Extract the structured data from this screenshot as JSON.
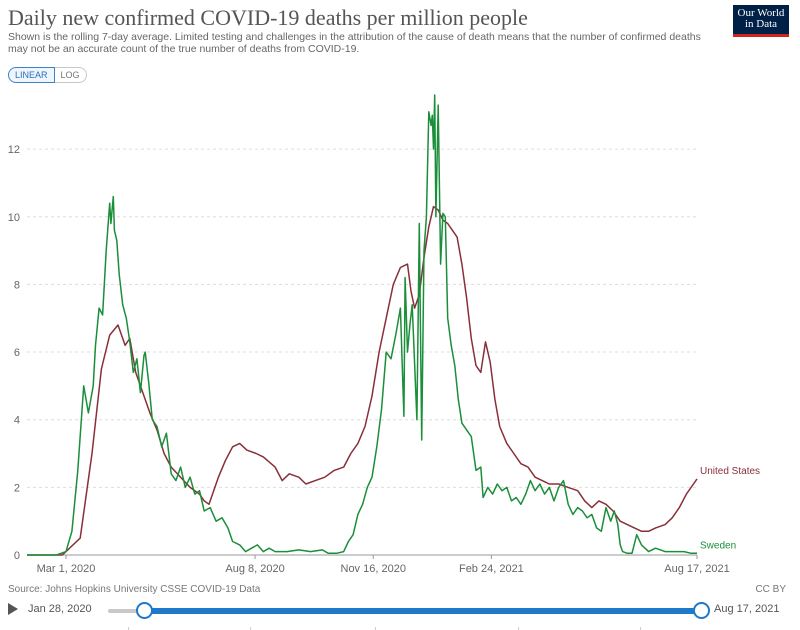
{
  "header": {
    "title": "Daily new confirmed COVID-19 deaths per million people",
    "subtitle": "Shown is the rolling 7-day average. Limited testing and challenges in the attribution of the cause of death means that the number of confirmed deaths may not be an accurate count of the true number of deaths from COVID-19.",
    "logo_line1": "Our World",
    "logo_line2": "in Data"
  },
  "controls": {
    "linear_label": "LINEAR",
    "log_label": "LOG"
  },
  "footer": {
    "source": "Source: Johns Hopkins University CSSE COVID-19 Data",
    "license": "CC BY"
  },
  "timeline": {
    "start": "Jan 28, 2020",
    "end": "Aug 17, 2021"
  },
  "colors": {
    "united_states": "#883039",
    "sweden": "#1b8e3a",
    "grid": "#dddddd",
    "text": "#666666"
  },
  "chart_data": {
    "type": "line",
    "title": "Daily new confirmed COVID-19 deaths per million people",
    "xlabel": "",
    "ylabel": "",
    "x_unit": "days since Jan 28, 2020",
    "xlim": [
      0,
      567
    ],
    "ylim": [
      0,
      13.6
    ],
    "y_ticks": [
      0,
      2,
      4,
      6,
      8,
      10,
      12
    ],
    "x_ticks": [
      {
        "x": 33,
        "label": "Mar 1, 2020"
      },
      {
        "x": 193,
        "label": "Aug 8, 2020"
      },
      {
        "x": 293,
        "label": "Nov 16, 2020"
      },
      {
        "x": 393,
        "label": "Feb 24, 2021"
      },
      {
        "x": 567,
        "label": "Aug 17, 2021"
      }
    ],
    "series": [
      {
        "name": "United States",
        "color": "#883039",
        "points": [
          [
            0,
            0
          ],
          [
            30,
            0
          ],
          [
            45,
            0.5
          ],
          [
            55,
            3
          ],
          [
            63,
            5.5
          ],
          [
            70,
            6.5
          ],
          [
            77,
            6.8
          ],
          [
            83,
            6.2
          ],
          [
            87,
            6.4
          ],
          [
            92,
            5.4
          ],
          [
            98,
            4.8
          ],
          [
            104,
            4.2
          ],
          [
            110,
            3.7
          ],
          [
            116,
            3.0
          ],
          [
            122,
            2.6
          ],
          [
            130,
            2.3
          ],
          [
            138,
            2.0
          ],
          [
            146,
            1.8
          ],
          [
            150,
            1.6
          ],
          [
            154,
            1.5
          ],
          [
            158,
            1.9
          ],
          [
            162,
            2.3
          ],
          [
            168,
            2.8
          ],
          [
            174,
            3.2
          ],
          [
            180,
            3.3
          ],
          [
            186,
            3.1
          ],
          [
            194,
            3.0
          ],
          [
            200,
            2.9
          ],
          [
            210,
            2.6
          ],
          [
            216,
            2.2
          ],
          [
            222,
            2.4
          ],
          [
            230,
            2.3
          ],
          [
            236,
            2.1
          ],
          [
            244,
            2.2
          ],
          [
            252,
            2.3
          ],
          [
            260,
            2.5
          ],
          [
            268,
            2.6
          ],
          [
            274,
            3.0
          ],
          [
            280,
            3.3
          ],
          [
            286,
            3.8
          ],
          [
            292,
            4.7
          ],
          [
            298,
            6.0
          ],
          [
            304,
            7.0
          ],
          [
            310,
            8.0
          ],
          [
            316,
            8.5
          ],
          [
            322,
            8.6
          ],
          [
            325,
            7.8
          ],
          [
            328,
            7.3
          ],
          [
            332,
            7.7
          ],
          [
            336,
            8.8
          ],
          [
            340,
            9.7
          ],
          [
            344,
            10.3
          ],
          [
            348,
            10.2
          ],
          [
            352,
            9.9
          ],
          [
            356,
            9.8
          ],
          [
            360,
            9.6
          ],
          [
            364,
            9.4
          ],
          [
            368,
            8.6
          ],
          [
            372,
            7.6
          ],
          [
            376,
            6.4
          ],
          [
            380,
            5.6
          ],
          [
            384,
            5.4
          ],
          [
            388,
            6.3
          ],
          [
            392,
            5.7
          ],
          [
            396,
            4.6
          ],
          [
            400,
            3.8
          ],
          [
            406,
            3.3
          ],
          [
            412,
            3.0
          ],
          [
            418,
            2.7
          ],
          [
            424,
            2.6
          ],
          [
            430,
            2.3
          ],
          [
            436,
            2.2
          ],
          [
            442,
            2.1
          ],
          [
            450,
            2.1
          ],
          [
            458,
            2.0
          ],
          [
            466,
            1.9
          ],
          [
            472,
            1.6
          ],
          [
            478,
            1.4
          ],
          [
            484,
            1.6
          ],
          [
            490,
            1.5
          ],
          [
            496,
            1.3
          ],
          [
            502,
            1.0
          ],
          [
            508,
            0.9
          ],
          [
            514,
            0.8
          ],
          [
            520,
            0.7
          ],
          [
            526,
            0.7
          ],
          [
            532,
            0.8
          ],
          [
            540,
            0.9
          ],
          [
            546,
            1.1
          ],
          [
            552,
            1.4
          ],
          [
            558,
            1.8
          ],
          [
            564,
            2.1
          ],
          [
            567,
            2.25
          ]
        ]
      },
      {
        "name": "Sweden",
        "color": "#1b8e3a",
        "points": [
          [
            0,
            0
          ],
          [
            25,
            0
          ],
          [
            33,
            0.1
          ],
          [
            38,
            0.7
          ],
          [
            43,
            2.5
          ],
          [
            48,
            5.0
          ],
          [
            52,
            4.2
          ],
          [
            56,
            5.0
          ],
          [
            58,
            6.2
          ],
          [
            61,
            7.3
          ],
          [
            64,
            7.1
          ],
          [
            67,
            9.0
          ],
          [
            70,
            10.4
          ],
          [
            71,
            9.8
          ],
          [
            73,
            10.6
          ],
          [
            74,
            9.6
          ],
          [
            76,
            9.3
          ],
          [
            78,
            8.3
          ],
          [
            81,
            7.4
          ],
          [
            84,
            7.0
          ],
          [
            87,
            6.3
          ],
          [
            90,
            5.4
          ],
          [
            93,
            5.8
          ],
          [
            96,
            4.8
          ],
          [
            99,
            5.9
          ],
          [
            100,
            6.0
          ],
          [
            103,
            5.1
          ],
          [
            106,
            4.0
          ],
          [
            110,
            3.8
          ],
          [
            114,
            3.2
          ],
          [
            118,
            3.6
          ],
          [
            122,
            2.4
          ],
          [
            126,
            2.2
          ],
          [
            130,
            2.6
          ],
          [
            134,
            2.0
          ],
          [
            138,
            2.3
          ],
          [
            142,
            1.8
          ],
          [
            146,
            1.9
          ],
          [
            150,
            1.3
          ],
          [
            155,
            1.4
          ],
          [
            160,
            1.0
          ],
          [
            165,
            1.1
          ],
          [
            170,
            0.8
          ],
          [
            174,
            0.4
          ],
          [
            180,
            0.3
          ],
          [
            185,
            0.1
          ],
          [
            190,
            0.2
          ],
          [
            195,
            0.3
          ],
          [
            200,
            0.1
          ],
          [
            205,
            0.2
          ],
          [
            210,
            0.1
          ],
          [
            220,
            0.1
          ],
          [
            230,
            0.15
          ],
          [
            240,
            0.1
          ],
          [
            250,
            0.15
          ],
          [
            255,
            0.05
          ],
          [
            262,
            0.05
          ],
          [
            268,
            0.1
          ],
          [
            272,
            0.4
          ],
          [
            276,
            0.6
          ],
          [
            280,
            1.2
          ],
          [
            284,
            1.5
          ],
          [
            288,
            2.0
          ],
          [
            292,
            2.3
          ],
          [
            296,
            3.2
          ],
          [
            300,
            4.3
          ],
          [
            304,
            6.0
          ],
          [
            308,
            5.8
          ],
          [
            312,
            6.5
          ],
          [
            316,
            7.3
          ],
          [
            319,
            4.1
          ],
          [
            320,
            8.2
          ],
          [
            322,
            6.0
          ],
          [
            324,
            6.8
          ],
          [
            326,
            7.4
          ],
          [
            330,
            4.0
          ],
          [
            332,
            9.8
          ],
          [
            334,
            3.4
          ],
          [
            336,
            9.0
          ],
          [
            338,
            10.0
          ],
          [
            340,
            13.1
          ],
          [
            342,
            12.7
          ],
          [
            343,
            13.0
          ],
          [
            344,
            12.0
          ],
          [
            345,
            13.6
          ],
          [
            346,
            10.0
          ],
          [
            348,
            13.3
          ],
          [
            350,
            8.6
          ],
          [
            352,
            10.1
          ],
          [
            354,
            10.0
          ],
          [
            356,
            7.0
          ],
          [
            359,
            6.2
          ],
          [
            362,
            5.6
          ],
          [
            365,
            4.6
          ],
          [
            368,
            3.9
          ],
          [
            372,
            3.7
          ],
          [
            376,
            3.5
          ],
          [
            380,
            2.5
          ],
          [
            384,
            2.6
          ],
          [
            386,
            1.7
          ],
          [
            390,
            2.0
          ],
          [
            394,
            1.8
          ],
          [
            398,
            2.1
          ],
          [
            402,
            1.9
          ],
          [
            406,
            2.0
          ],
          [
            410,
            1.6
          ],
          [
            414,
            1.7
          ],
          [
            418,
            1.5
          ],
          [
            422,
            1.8
          ],
          [
            426,
            2.2
          ],
          [
            430,
            1.9
          ],
          [
            434,
            2.1
          ],
          [
            438,
            1.8
          ],
          [
            442,
            2.0
          ],
          [
            446,
            1.6
          ],
          [
            450,
            2.0
          ],
          [
            454,
            2.2
          ],
          [
            458,
            1.5
          ],
          [
            462,
            1.2
          ],
          [
            466,
            1.4
          ],
          [
            470,
            1.3
          ],
          [
            474,
            1.1
          ],
          [
            478,
            1.2
          ],
          [
            482,
            0.8
          ],
          [
            486,
            0.7
          ],
          [
            490,
            1.4
          ],
          [
            494,
            1.0
          ],
          [
            497,
            1.3
          ],
          [
            500,
            0.9
          ],
          [
            502,
            0.3
          ],
          [
            504,
            0.1
          ],
          [
            508,
            0.05
          ],
          [
            512,
            0.05
          ],
          [
            516,
            0.6
          ],
          [
            520,
            0.3
          ],
          [
            526,
            0.1
          ],
          [
            532,
            0.2
          ],
          [
            540,
            0.1
          ],
          [
            548,
            0.1
          ],
          [
            556,
            0.1
          ],
          [
            562,
            0.05
          ],
          [
            567,
            0.05
          ]
        ]
      }
    ]
  }
}
